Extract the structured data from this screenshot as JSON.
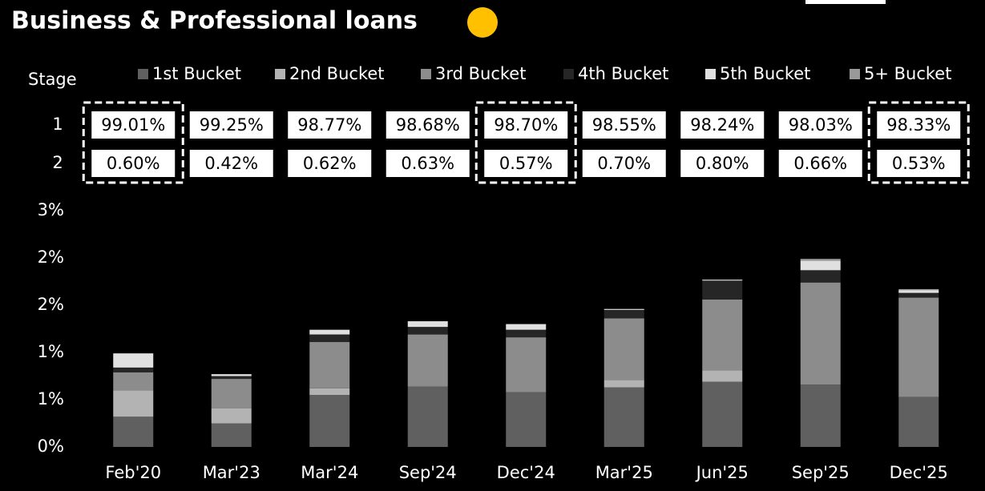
{
  "chart_data": {
    "type": "stacked_bar",
    "title": "Business & Professional loans",
    "categories": [
      "Feb'20",
      "Mar'23",
      "Mar'24",
      "Sep'24",
      "Dec'24",
      "Mar'25",
      "Jun'25",
      "Sep'25",
      "Dec'25"
    ],
    "series": [
      {
        "name": "1st Bucket",
        "color": "#606060",
        "values": [
          0.32,
          0.25,
          0.55,
          0.64,
          0.58,
          0.63,
          0.69,
          0.66,
          0.53
        ]
      },
      {
        "name": "2nd Bucket",
        "color": "#b3b3b3",
        "values": [
          0.28,
          0.16,
          0.07,
          0,
          0,
          0.08,
          0.12,
          0,
          0
        ]
      },
      {
        "name": "3rd Bucket",
        "color": "#8c8c8c",
        "values": [
          0.19,
          0.31,
          0.49,
          0.55,
          0.58,
          0.65,
          0.75,
          1.08,
          1.05
        ]
      },
      {
        "name": "4th Bucket",
        "color": "#262626",
        "values": [
          0.05,
          0.03,
          0.08,
          0.08,
          0.08,
          0.09,
          0.2,
          0.13,
          0.05
        ]
      },
      {
        "name": "5th Bucket",
        "color": "#e0e0e0",
        "values": [
          0.15,
          0.02,
          0.05,
          0.06,
          0.06,
          0.01,
          0.01,
          0.1,
          0.03
        ]
      },
      {
        "name": "5+ Bucket",
        "color": "#999999",
        "values": [
          0,
          0,
          0,
          0,
          0,
          0,
          0,
          0.02,
          0.01
        ]
      }
    ],
    "ylim": [
      0,
      2.5
    ],
    "yticks": [
      {
        "value": 0,
        "label": "0%"
      },
      {
        "value": 0.5,
        "label": "1%"
      },
      {
        "value": 1,
        "label": "1%"
      },
      {
        "value": 1.5,
        "label": "2%"
      },
      {
        "value": 2,
        "label": "2%"
      },
      {
        "value": 2.5,
        "label": "3%"
      }
    ]
  },
  "stage_table": {
    "label": "Stage",
    "highlighted_columns": [
      0,
      4,
      8
    ],
    "rows": [
      {
        "name": "1",
        "values": [
          "99.01%",
          "99.25%",
          "98.77%",
          "98.68%",
          "98.70%",
          "98.55%",
          "98.24%",
          "98.03%",
          "98.33%"
        ]
      },
      {
        "name": "2",
        "values": [
          "0.60%",
          "0.42%",
          "0.62%",
          "0.63%",
          "0.57%",
          "0.70%",
          "0.80%",
          "0.66%",
          "0.53%"
        ]
      }
    ]
  }
}
